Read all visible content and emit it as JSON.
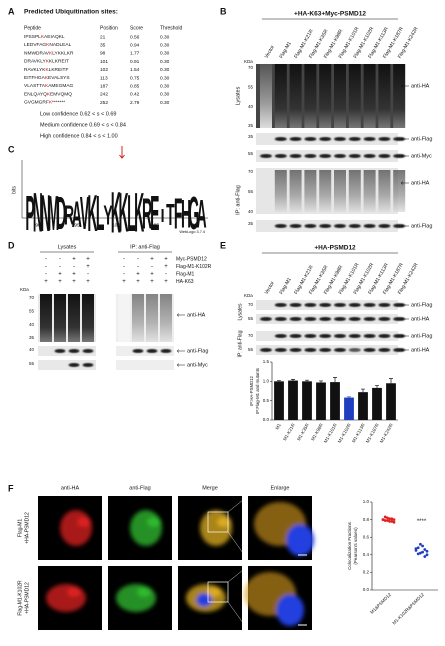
{
  "panels": {
    "A": {
      "label": "A",
      "title": "Predicted Ubiquitination sites:",
      "columns": [
        "Peptide",
        "Position",
        "Score",
        "Threshold"
      ],
      "rows": [
        [
          "IPSSPLKAEIAQKL",
          "21",
          "0.56",
          "0.30"
        ],
        [
          "LEDVFAGKNADLEAL",
          "35",
          "0.94",
          "0.30"
        ],
        [
          "NMWDRAVKLYKKLKR",
          "98",
          "1.77",
          "0.30"
        ],
        [
          "DRAVKLYKKLKREIT",
          "101",
          "0.91",
          "0.30"
        ],
        [
          "RAVKLYKKLKREITF",
          "102",
          "1.54",
          "0.30"
        ],
        [
          "EITFHGAKEVALSYS",
          "113",
          "0.75",
          "0.30"
        ],
        [
          "VLASTTAKAMEGMAG",
          "187",
          "0.85",
          "0.30"
        ],
        [
          "ENLQAYQKEMVQMQ",
          "242",
          "0.42",
          "0.30"
        ],
        [
          "GVGMGRFK*******",
          "252",
          "2.79",
          "0.30"
        ]
      ],
      "confidence": [
        "Low confidence 0.62 < s < 0.69",
        "Medium confidence 0.69 < s < 0.84",
        "High confidence 0.84 < s < 1.00"
      ]
    },
    "B": {
      "label": "B",
      "title": "+HA-K63+Myc-PSMD12",
      "kda": "KDa",
      "lanes": [
        "Vector",
        "Flag-M1",
        "Flag-M1-K21R",
        "Flag-M1-K35R",
        "Flag-M1-K98R",
        "Flag-M1-K101R",
        "Flag-M1-K102R",
        "Flag-M1-K113R",
        "Flag-M1-K187R",
        "Flag-M1-K242R"
      ],
      "sides": [
        "Lysates",
        "IP: anti-Flag"
      ],
      "antibodies": [
        "anti-HA",
        "anti-Flag",
        "anti-Myc",
        "anti-HA",
        "anti-Flag"
      ],
      "markers": [
        [
          "70",
          "55",
          "40",
          "35"
        ],
        [
          "35"
        ],
        [
          "55"
        ],
        [
          "70",
          "55",
          "40"
        ],
        [
          "35"
        ]
      ]
    },
    "C": {
      "label": "C",
      "ylabel": "bits",
      "letters": [
        "P",
        "N",
        "N",
        "M",
        "D",
        "R",
        "A",
        "V",
        "K",
        "L",
        "Y",
        "K",
        "K",
        "L",
        "K",
        "R",
        "E",
        "I",
        "T",
        "F",
        "H",
        "G",
        "A"
      ],
      "xticks": [
        "90",
        "95",
        "100",
        "105",
        "110"
      ],
      "credit": "WebLogo 3.7.4"
    },
    "D": {
      "label": "D",
      "headers": [
        "Lysates",
        "IP: anti-Flag"
      ],
      "kda": "KDa",
      "conditions": [
        {
          "name": "Myc-PSMD12",
          "signs": [
            "-",
            "-",
            "+",
            "+",
            "-",
            "-",
            "+",
            "+"
          ]
        },
        {
          "name": "Flag-M1-K102R",
          "signs": [
            "-",
            "-",
            "-",
            "+",
            "-",
            "-",
            "-",
            "+"
          ]
        },
        {
          "name": "Flag-M1",
          "signs": [
            "-",
            "+",
            "+",
            "-",
            "-",
            "+",
            "+",
            "-"
          ]
        },
        {
          "name": "HA-K63",
          "signs": [
            "+",
            "+",
            "+",
            "+",
            "+",
            "+",
            "+",
            "+"
          ]
        }
      ],
      "antibodies": [
        "anti-HA",
        "anti-Flag",
        "anti-Myc"
      ],
      "markers": [
        [
          "70",
          "55",
          "40",
          "35"
        ],
        [
          "40"
        ],
        [
          "55"
        ]
      ]
    },
    "E": {
      "label": "E",
      "title": "+HA-PSMD12",
      "kda": "KDa",
      "lanes": [
        "Vector",
        "Flag-M1",
        "Flag-M1-K21R",
        "Flag-M1-K35R",
        "Flag-M1-K98R",
        "Flag-M1-K101R",
        "Flag-M1-K102R",
        "Flag-M1-K113R",
        "Flag-M1-K187R",
        "Flag-M1-K242R"
      ],
      "sides": [
        "Lysates",
        "IP: anti-Flag"
      ],
      "antibodies": [
        "anti-Flag",
        "anti-HA",
        "anti-Flag",
        "anti-HA"
      ],
      "markers": [
        [
          "70"
        ],
        [
          "55"
        ],
        [
          "70"
        ],
        [
          "55"
        ]
      ],
      "chart": {
        "type": "bar",
        "ylabel": [
          "IP:HA-PSMD12",
          "IP:Flag-M1 and mutants"
        ],
        "categories": [
          "M1",
          "M1-K21R",
          "M1-K35R",
          "M1-K98R",
          "M1-K101R",
          "M1-K102R",
          "M1-K113R",
          "M1-K187R",
          "M1-K242R"
        ],
        "values": [
          1.0,
          1.02,
          1.0,
          0.97,
          0.98,
          0.58,
          0.72,
          0.83,
          0.95
        ],
        "errors": [
          0.02,
          0.03,
          0.03,
          0.04,
          0.12,
          0.02,
          0.08,
          0.06,
          0.12
        ],
        "colors": [
          "#111111",
          "#111111",
          "#111111",
          "#111111",
          "#111111",
          "#1f3fbf",
          "#111111",
          "#111111",
          "#111111"
        ],
        "ylim": [
          0,
          1.5
        ],
        "yticks": [
          {
            "value": 0,
            "label": "0.0"
          },
          {
            "value": 0.5,
            "label": "0.5"
          },
          {
            "value": 1,
            "label": "1.0"
          },
          {
            "value": 1.5,
            "label": "1.5"
          }
        ]
      }
    },
    "F": {
      "label": "F",
      "columns": [
        "anti-HA",
        "anti-Flag",
        "Merge",
        "Enlarge"
      ],
      "rows": [
        [
          "Flag-M1",
          "+HA-PSMD12"
        ],
        [
          "Flag-M1-K102R",
          "+HA-PSMD12"
        ]
      ],
      "chart": {
        "type": "scatter",
        "ylabel": [
          "Colocalization Fractions",
          "(Pearson's values)"
        ],
        "significance": "****",
        "series": [
          {
            "name": "M1&PSMD12",
            "color": "#e02020",
            "values": [
              0.8,
              0.79,
              0.82,
              0.78,
              0.81,
              0.77,
              0.8,
              0.83,
              0.79,
              0.81,
              0.78,
              0.8
            ]
          },
          {
            "name": "M1-K102R&PSMD12",
            "color": "#1f3fbf",
            "values": [
              0.45,
              0.48,
              0.42,
              0.5,
              0.38,
              0.44,
              0.47,
              0.41,
              0.52,
              0.43,
              0.46,
              0.4
            ]
          }
        ],
        "ylim": [
          0,
          1
        ],
        "yticks": [
          {
            "value": 0,
            "label": "0.0"
          },
          {
            "value": 0.2,
            "label": "0.2"
          },
          {
            "value": 0.4,
            "label": "0.4"
          },
          {
            "value": 0.6,
            "label": "0.6"
          },
          {
            "value": 0.8,
            "label": "0.8"
          },
          {
            "value": 1,
            "label": "1.0"
          }
        ]
      }
    }
  }
}
